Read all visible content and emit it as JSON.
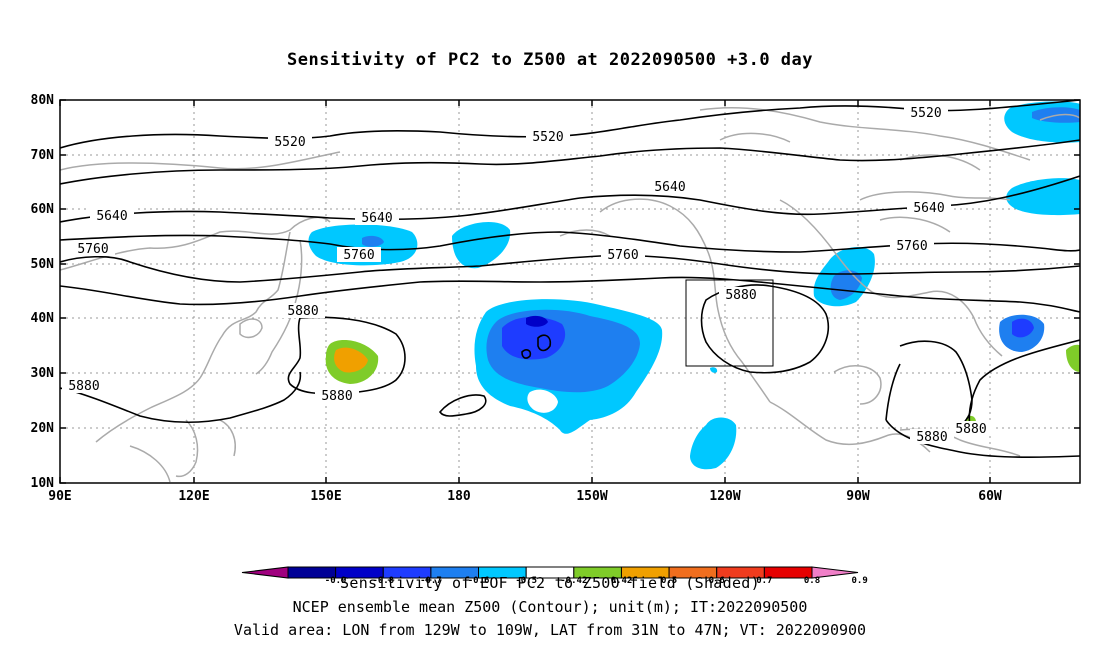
{
  "title": "Sensitivity of PC2 to Z500 at 2022090500 +3.0 day",
  "lat_labels": [
    "80N",
    "70N",
    "60N",
    "50N",
    "40N",
    "30N",
    "20N",
    "10N"
  ],
  "lon_labels": [
    "90E",
    "120E",
    "150E",
    "180",
    "150W",
    "120W",
    "90W",
    "60W"
  ],
  "contour_labels": [
    {
      "text": "5520",
      "id": "c5520-a"
    },
    {
      "text": "5520",
      "id": "c5520-b"
    },
    {
      "text": "5520",
      "id": "c5520-c"
    },
    {
      "text": "5640",
      "id": "c5640-a"
    },
    {
      "text": "5640",
      "id": "c5640-b"
    },
    {
      "text": "5640",
      "id": "c5640-c"
    },
    {
      "text": "5640",
      "id": "c5640-d"
    },
    {
      "text": "5760",
      "id": "c5760-a"
    },
    {
      "text": "5760",
      "id": "c5760-b"
    },
    {
      "text": "5760",
      "id": "c5760-c"
    },
    {
      "text": "5760",
      "id": "c5760-d"
    },
    {
      "text": "5880",
      "id": "c5880-a"
    },
    {
      "text": "5880",
      "id": "c5880-b"
    },
    {
      "text": "5880",
      "id": "c5880-c"
    },
    {
      "text": "5880",
      "id": "c5880-d"
    },
    {
      "text": "5880",
      "id": "c5880-e"
    },
    {
      "text": "5880",
      "id": "c5880-f"
    }
  ],
  "colorbar": {
    "ticks": [
      "-0.9",
      "-0.8",
      "-0.7",
      "-0.6",
      "-0.5",
      "-0.42",
      "0.42",
      "0.5",
      "0.6",
      "0.7",
      "0.8",
      "0.9"
    ],
    "colors": [
      "#a0007f",
      "#000096",
      "#0000c8",
      "#1e3cff",
      "#1e7ff0",
      "#00c8ff",
      "#ffffff",
      "#7fcc29",
      "#f0a000",
      "#f06e1e",
      "#f03c1e",
      "#e60000",
      "#f07fc8"
    ]
  },
  "footer": {
    "line1": "Sensitivity of EOF PC2 to Z500 field (Shaded)",
    "line2": "NCEP ensemble mean Z500 (Contour); unit(m); IT:2022090500",
    "line3": "Valid area: LON from 129W to 109W, LAT from 31N to 47N; VT: 2022090900"
  },
  "valid_area_box": {
    "lon_w": "129W",
    "lon_e": "109W",
    "lat_s": "31N",
    "lat_n": "47N"
  }
}
